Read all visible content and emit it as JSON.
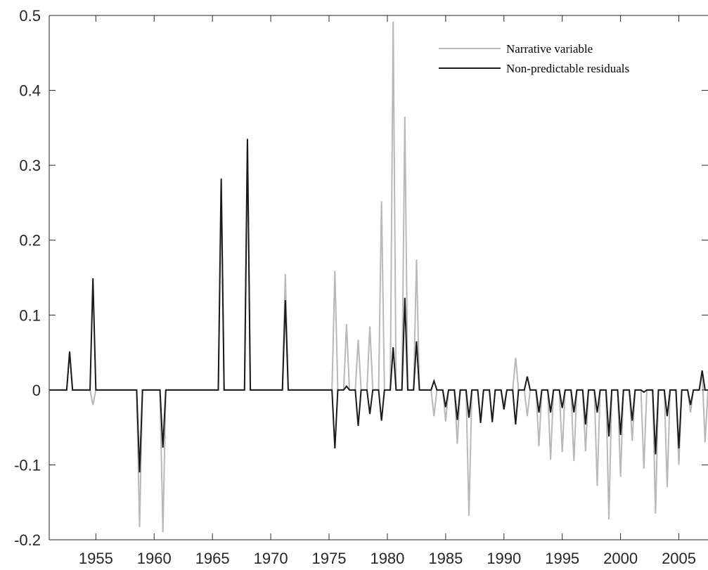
{
  "chart_data": {
    "type": "line",
    "title": "",
    "xlabel": "",
    "ylabel": "",
    "xlim": [
      1951,
      2007.5
    ],
    "ylim": [
      -0.2,
      0.5
    ],
    "xticks": [
      "1955",
      "1960",
      "1965",
      "1970",
      "1975",
      "1980",
      "1985",
      "1990",
      "1995",
      "2000",
      "2005"
    ],
    "yticks": [
      "-0.2",
      "-0.1",
      "0",
      "0.1",
      "0.2",
      "0.3",
      "0.4",
      "0.5"
    ],
    "grid": false,
    "legend_position": "top-right",
    "series": [
      {
        "name": "Narrative variable",
        "color": "#b8b8b8",
        "points": [
          [
            1952.0,
            0
          ],
          [
            1952.5,
            0
          ],
          [
            1952.75,
            0.052
          ],
          [
            1953.0,
            0
          ],
          [
            1954.5,
            0
          ],
          [
            1954.75,
            -0.02
          ],
          [
            1955.0,
            0
          ],
          [
            1958.5,
            0
          ],
          [
            1958.75,
            -0.183
          ],
          [
            1959.0,
            0
          ],
          [
            1960.5,
            0
          ],
          [
            1960.75,
            -0.19
          ],
          [
            1961.0,
            0
          ],
          [
            1965.5,
            0
          ],
          [
            1965.75,
            0.283
          ],
          [
            1966.0,
            0
          ],
          [
            1967.75,
            0
          ],
          [
            1968.0,
            0.336
          ],
          [
            1968.25,
            0
          ],
          [
            1971.0,
            0
          ],
          [
            1971.25,
            0.155
          ],
          [
            1971.5,
            0
          ],
          [
            1975.25,
            0
          ],
          [
            1975.5,
            0.159
          ],
          [
            1975.75,
            0
          ],
          [
            1976.25,
            0
          ],
          [
            1976.5,
            0.088
          ],
          [
            1976.75,
            0
          ],
          [
            1977.25,
            0
          ],
          [
            1977.5,
            0.067
          ],
          [
            1977.75,
            0
          ],
          [
            1978.25,
            0
          ],
          [
            1978.5,
            0.085
          ],
          [
            1978.75,
            0
          ],
          [
            1979.25,
            0
          ],
          [
            1979.5,
            0.252
          ],
          [
            1979.75,
            0
          ],
          [
            1980.25,
            0
          ],
          [
            1980.5,
            0.492
          ],
          [
            1980.75,
            0
          ],
          [
            1981.25,
            0
          ],
          [
            1981.5,
            0.365
          ],
          [
            1981.75,
            0
          ],
          [
            1982.25,
            0
          ],
          [
            1982.5,
            0.174
          ],
          [
            1982.75,
            0
          ],
          [
            1983.75,
            0
          ],
          [
            1984.0,
            -0.035
          ],
          [
            1984.25,
            0
          ],
          [
            1984.75,
            0
          ],
          [
            1985.0,
            -0.042
          ],
          [
            1985.25,
            0
          ],
          [
            1985.75,
            0
          ],
          [
            1986.0,
            -0.072
          ],
          [
            1986.25,
            0
          ],
          [
            1986.75,
            0
          ],
          [
            1987.0,
            -0.168
          ],
          [
            1987.25,
            0
          ],
          [
            1987.75,
            0
          ],
          [
            1988.0,
            -0.042
          ],
          [
            1988.25,
            0
          ],
          [
            1988.75,
            0
          ],
          [
            1989.0,
            -0.04
          ],
          [
            1989.25,
            0
          ],
          [
            1989.75,
            0
          ],
          [
            1990.0,
            -0.02
          ],
          [
            1990.25,
            0
          ],
          [
            1990.75,
            0
          ],
          [
            1991.0,
            0.043
          ],
          [
            1991.25,
            0
          ],
          [
            1991.75,
            0
          ],
          [
            1992.0,
            -0.035
          ],
          [
            1992.25,
            0
          ],
          [
            1992.75,
            0
          ],
          [
            1993.0,
            -0.075
          ],
          [
            1993.25,
            0
          ],
          [
            1993.75,
            0
          ],
          [
            1994.0,
            -0.093
          ],
          [
            1994.25,
            0
          ],
          [
            1994.75,
            0
          ],
          [
            1995.0,
            -0.083
          ],
          [
            1995.25,
            0
          ],
          [
            1995.75,
            0
          ],
          [
            1996.0,
            -0.095
          ],
          [
            1996.25,
            0
          ],
          [
            1996.75,
            0
          ],
          [
            1997.0,
            -0.082
          ],
          [
            1997.25,
            0
          ],
          [
            1997.75,
            0
          ],
          [
            1998.0,
            -0.128
          ],
          [
            1998.25,
            0
          ],
          [
            1998.75,
            0
          ],
          [
            1999.0,
            -0.173
          ],
          [
            1999.25,
            0
          ],
          [
            1999.75,
            0
          ],
          [
            2000.0,
            -0.116
          ],
          [
            2000.25,
            0
          ],
          [
            2000.75,
            0
          ],
          [
            2001.0,
            -0.068
          ],
          [
            2001.25,
            0
          ],
          [
            2001.75,
            0
          ],
          [
            2002.0,
            -0.105
          ],
          [
            2002.25,
            0
          ],
          [
            2002.75,
            0
          ],
          [
            2003.0,
            -0.165
          ],
          [
            2003.25,
            0
          ],
          [
            2003.75,
            0
          ],
          [
            2004.0,
            -0.13
          ],
          [
            2004.25,
            0
          ],
          [
            2004.75,
            0
          ],
          [
            2005.0,
            -0.1
          ],
          [
            2005.25,
            0
          ],
          [
            2005.75,
            0
          ],
          [
            2006.0,
            -0.03
          ],
          [
            2006.25,
            0
          ],
          [
            2006.75,
            0
          ],
          [
            2007.0,
            0.024
          ],
          [
            2007.25,
            -0.07
          ],
          [
            2007.5,
            0
          ]
        ]
      },
      {
        "name": "Non-predictable residuals",
        "color": "#1a1a1a",
        "points": [
          [
            1951.0,
            0
          ],
          [
            1952.5,
            0
          ],
          [
            1952.75,
            0.051
          ],
          [
            1953.0,
            0
          ],
          [
            1954.5,
            0
          ],
          [
            1954.75,
            0.149
          ],
          [
            1955.0,
            0
          ],
          [
            1958.5,
            0
          ],
          [
            1958.75,
            -0.11
          ],
          [
            1959.0,
            0
          ],
          [
            1960.5,
            0
          ],
          [
            1960.75,
            -0.077
          ],
          [
            1961.0,
            0
          ],
          [
            1965.5,
            0
          ],
          [
            1965.75,
            0.282
          ],
          [
            1966.0,
            0
          ],
          [
            1967.75,
            0
          ],
          [
            1968.0,
            0.335
          ],
          [
            1968.25,
            0
          ],
          [
            1971.0,
            0
          ],
          [
            1971.25,
            0.12
          ],
          [
            1971.5,
            0
          ],
          [
            1975.25,
            0
          ],
          [
            1975.5,
            -0.078
          ],
          [
            1975.75,
            0
          ],
          [
            1976.25,
            0
          ],
          [
            1976.5,
            0.005
          ],
          [
            1976.75,
            0
          ],
          [
            1977.25,
            0
          ],
          [
            1977.5,
            -0.048
          ],
          [
            1977.75,
            0
          ],
          [
            1978.25,
            0
          ],
          [
            1978.5,
            -0.032
          ],
          [
            1978.75,
            0
          ],
          [
            1979.25,
            0
          ],
          [
            1979.5,
            -0.041
          ],
          [
            1979.75,
            0
          ],
          [
            1980.25,
            0
          ],
          [
            1980.5,
            0.057
          ],
          [
            1980.75,
            0
          ],
          [
            1981.25,
            0
          ],
          [
            1981.5,
            0.123
          ],
          [
            1981.75,
            0
          ],
          [
            1982.25,
            0
          ],
          [
            1982.5,
            0.065
          ],
          [
            1982.75,
            0
          ],
          [
            1983.75,
            0
          ],
          [
            1984.0,
            0.012
          ],
          [
            1984.25,
            0
          ],
          [
            1984.75,
            0
          ],
          [
            1985.0,
            -0.023
          ],
          [
            1985.25,
            0
          ],
          [
            1985.75,
            0
          ],
          [
            1986.0,
            -0.04
          ],
          [
            1986.25,
            0
          ],
          [
            1986.75,
            0
          ],
          [
            1987.0,
            -0.037
          ],
          [
            1987.25,
            0
          ],
          [
            1987.75,
            0
          ],
          [
            1988.0,
            -0.044
          ],
          [
            1988.25,
            0
          ],
          [
            1988.75,
            0
          ],
          [
            1989.0,
            -0.043
          ],
          [
            1989.25,
            0
          ],
          [
            1989.75,
            0
          ],
          [
            1990.0,
            -0.026
          ],
          [
            1990.25,
            0
          ],
          [
            1990.75,
            0
          ],
          [
            1991.0,
            -0.046
          ],
          [
            1991.25,
            0
          ],
          [
            1991.75,
            0
          ],
          [
            1992.0,
            0.018
          ],
          [
            1992.25,
            0
          ],
          [
            1992.75,
            0
          ],
          [
            1993.0,
            -0.03
          ],
          [
            1993.25,
            0
          ],
          [
            1993.75,
            0
          ],
          [
            1994.0,
            -0.03
          ],
          [
            1994.25,
            0
          ],
          [
            1994.75,
            0
          ],
          [
            1995.0,
            -0.024
          ],
          [
            1995.25,
            0
          ],
          [
            1995.75,
            0
          ],
          [
            1996.0,
            -0.03
          ],
          [
            1996.25,
            0
          ],
          [
            1996.75,
            0
          ],
          [
            1997.0,
            -0.046
          ],
          [
            1997.25,
            0
          ],
          [
            1997.75,
            0
          ],
          [
            1998.0,
            -0.03
          ],
          [
            1998.25,
            0
          ],
          [
            1998.75,
            0
          ],
          [
            1999.0,
            -0.062
          ],
          [
            1999.25,
            0
          ],
          [
            1999.75,
            0
          ],
          [
            2000.0,
            -0.06
          ],
          [
            2000.25,
            0
          ],
          [
            2000.75,
            0
          ],
          [
            2001.0,
            -0.041
          ],
          [
            2001.25,
            0
          ],
          [
            2001.75,
            0
          ],
          [
            2002.0,
            -0.003
          ],
          [
            2002.25,
            0
          ],
          [
            2002.75,
            0
          ],
          [
            2003.0,
            -0.086
          ],
          [
            2003.25,
            0
          ],
          [
            2003.75,
            0
          ],
          [
            2004.0,
            -0.035
          ],
          [
            2004.25,
            0
          ],
          [
            2004.75,
            0
          ],
          [
            2005.0,
            -0.078
          ],
          [
            2005.25,
            0
          ],
          [
            2005.75,
            0
          ],
          [
            2006.0,
            -0.02
          ],
          [
            2006.25,
            0
          ],
          [
            2006.75,
            0
          ],
          [
            2007.0,
            0.026
          ],
          [
            2007.25,
            0
          ],
          [
            2007.5,
            0
          ]
        ]
      }
    ]
  }
}
